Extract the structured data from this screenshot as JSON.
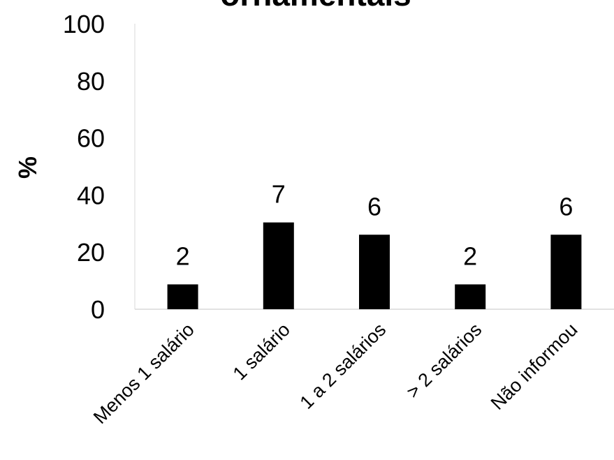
{
  "chart_data": {
    "type": "bar",
    "title": "ornamentais",
    "ylabel": "%",
    "xlabel": "",
    "categories": [
      "Menos 1 salário",
      "1 salário",
      "1 a 2 salários",
      "> 2 salários",
      "Não informou"
    ],
    "values": [
      8.7,
      30.4,
      26.1,
      8.7,
      26.1
    ],
    "data_labels": [
      "2",
      "7",
      "6",
      "2",
      "6"
    ],
    "ylim": [
      0,
      100
    ],
    "yticks": [
      "0",
      "20",
      "40",
      "60",
      "80",
      "100"
    ],
    "grid": false,
    "legend": "none",
    "bar_color": "#000000"
  }
}
